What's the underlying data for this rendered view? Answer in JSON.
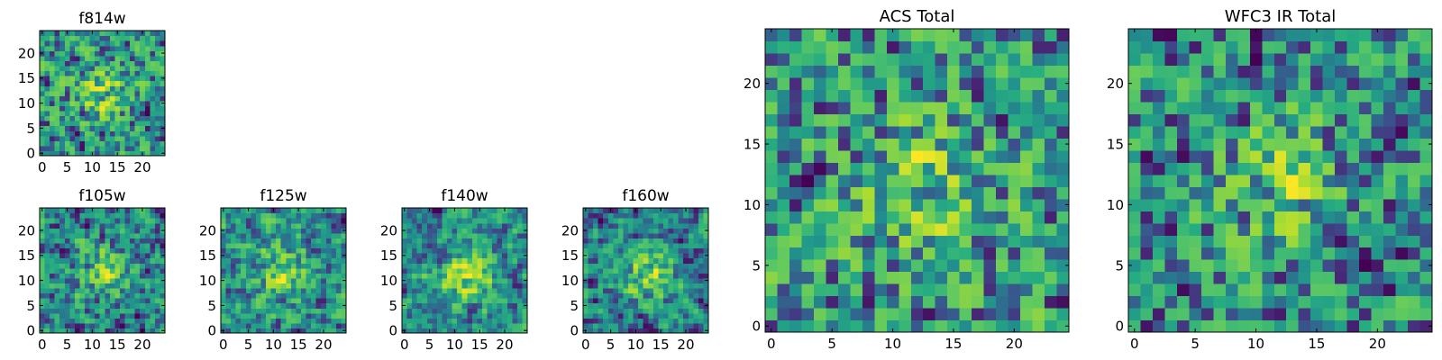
{
  "chart_data": [
    {
      "type": "heatmap",
      "title": "f814w",
      "xlim": [
        0,
        24
      ],
      "ylim": [
        0,
        24
      ],
      "xticks": [
        0,
        5,
        10,
        15,
        20
      ],
      "yticks": [
        0,
        5,
        10,
        15,
        20
      ],
      "grid": false,
      "cmap": "viridis",
      "seed": 11,
      "center": [
        12,
        12
      ],
      "center_strength": 0.3,
      "smooth": 0.25
    },
    {
      "type": "heatmap",
      "title": "f105w",
      "xlim": [
        0,
        24
      ],
      "ylim": [
        0,
        24
      ],
      "xticks": [
        0,
        5,
        10,
        15,
        20
      ],
      "yticks": [
        0,
        5,
        10,
        15,
        20
      ],
      "grid": false,
      "cmap": "viridis",
      "seed": 23,
      "center": [
        12,
        12
      ],
      "center_strength": 0.35,
      "smooth": 0.35
    },
    {
      "type": "heatmap",
      "title": "f125w",
      "xlim": [
        0,
        24
      ],
      "ylim": [
        0,
        24
      ],
      "xticks": [
        0,
        5,
        10,
        15,
        20
      ],
      "yticks": [
        0,
        5,
        10,
        15,
        20
      ],
      "grid": false,
      "cmap": "viridis",
      "seed": 37,
      "center": [
        12,
        12
      ],
      "center_strength": 0.35,
      "smooth": 0.4
    },
    {
      "type": "heatmap",
      "title": "f140w",
      "xlim": [
        0,
        24
      ],
      "ylim": [
        0,
        24
      ],
      "xticks": [
        0,
        5,
        10,
        15,
        20
      ],
      "yticks": [
        0,
        5,
        10,
        15,
        20
      ],
      "grid": false,
      "cmap": "viridis",
      "seed": 41,
      "center": [
        12,
        11
      ],
      "center_strength": 0.45,
      "smooth": 0.45
    },
    {
      "type": "heatmap",
      "title": "f160w",
      "xlim": [
        0,
        24
      ],
      "ylim": [
        0,
        24
      ],
      "xticks": [
        0,
        5,
        10,
        15,
        20
      ],
      "yticks": [
        0,
        5,
        10,
        15,
        20
      ],
      "grid": false,
      "cmap": "viridis",
      "seed": 53,
      "center": [
        12,
        12
      ],
      "center_strength": 0.45,
      "smooth": 0.45
    },
    {
      "type": "heatmap",
      "title": "ACS Total",
      "xlim": [
        0,
        24
      ],
      "ylim": [
        0,
        24
      ],
      "xticks": [
        0,
        5,
        10,
        15,
        20
      ],
      "yticks": [
        0,
        5,
        10,
        15,
        20
      ],
      "grid": false,
      "cmap": "viridis",
      "seed": 67,
      "center": [
        12,
        11
      ],
      "center_strength": 0.3,
      "smooth": 0.2
    },
    {
      "type": "heatmap",
      "title": "WFC3 IR Total",
      "xlim": [
        0,
        24
      ],
      "ylim": [
        0,
        24
      ],
      "xticks": [
        0,
        5,
        10,
        15,
        20
      ],
      "yticks": [
        0,
        5,
        10,
        15,
        20
      ],
      "grid": false,
      "cmap": "viridis",
      "seed": 79,
      "center": [
        12,
        12
      ],
      "center_strength": 0.3,
      "smooth": 0.2
    }
  ]
}
